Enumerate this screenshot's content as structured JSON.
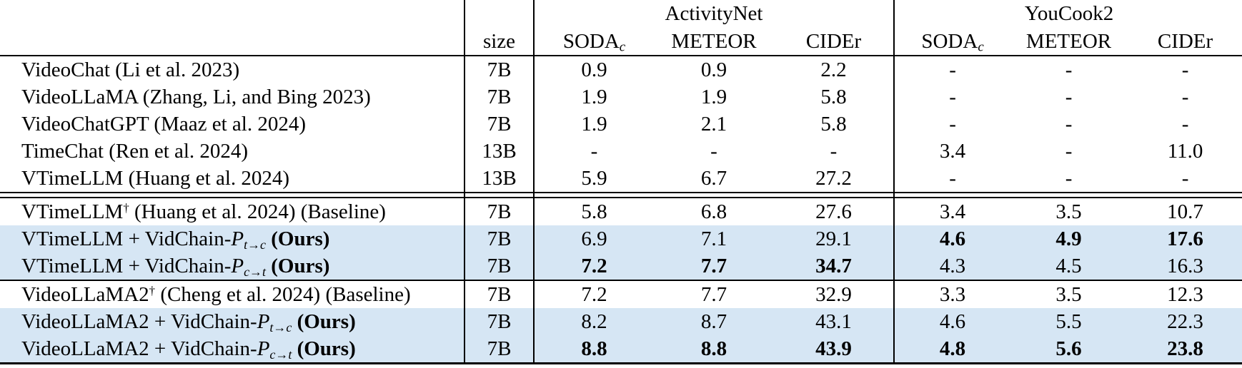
{
  "table": {
    "header": {
      "size_label": "size",
      "groups": [
        {
          "label": "ActivityNet"
        },
        {
          "label": "YouCook2"
        }
      ],
      "metrics": {
        "soda_base": "SODA",
        "soda_sub": "c",
        "meteor": "METEOR",
        "cider": "CIDEr"
      }
    },
    "highlight_color": "#d6e6f4",
    "rows": [
      {
        "label": [
          {
            "type": "text",
            "text": "VideoChat  (Li et al. 2023)"
          }
        ],
        "size": "7B",
        "values": [
          "0.9",
          "0.9",
          "2.2",
          "-",
          "-",
          "-"
        ],
        "bold": [
          false,
          false,
          false,
          false,
          false,
          false
        ],
        "highlight": false,
        "rule_after": null
      },
      {
        "label": [
          {
            "type": "text",
            "text": "VideoLLaMA (Zhang, Li, and Bing 2023)"
          }
        ],
        "size": "7B",
        "values": [
          "1.9",
          "1.9",
          "5.8",
          "-",
          "-",
          "-"
        ],
        "bold": [
          false,
          false,
          false,
          false,
          false,
          false
        ],
        "highlight": false,
        "rule_after": null
      },
      {
        "label": [
          {
            "type": "text",
            "text": "VideoChatGPT (Maaz et al. 2024)"
          }
        ],
        "size": "7B",
        "values": [
          "1.9",
          "2.1",
          "5.8",
          "-",
          "-",
          "-"
        ],
        "bold": [
          false,
          false,
          false,
          false,
          false,
          false
        ],
        "highlight": false,
        "rule_after": null
      },
      {
        "label": [
          {
            "type": "text",
            "text": "TimeChat (Ren et al. 2024)"
          }
        ],
        "size": "13B",
        "values": [
          "-",
          "-",
          "-",
          "3.4",
          "-",
          "11.0"
        ],
        "bold": [
          false,
          false,
          false,
          false,
          false,
          false
        ],
        "highlight": false,
        "rule_after": null
      },
      {
        "label": [
          {
            "type": "text",
            "text": "VTimeLLM (Huang et al. 2024)"
          }
        ],
        "size": "13B",
        "values": [
          "5.9",
          "6.7",
          "27.2",
          "-",
          "-",
          "-"
        ],
        "bold": [
          false,
          false,
          false,
          false,
          false,
          false
        ],
        "highlight": false,
        "rule_after": "double"
      },
      {
        "label": [
          {
            "type": "text",
            "text": "VTimeLLM"
          },
          {
            "type": "sup",
            "text": "†"
          },
          {
            "type": "text",
            "text": " (Huang et al. 2024) (Baseline)"
          }
        ],
        "size": "7B",
        "values": [
          "5.8",
          "6.8",
          "27.6",
          "3.4",
          "3.5",
          "10.7"
        ],
        "bold": [
          false,
          false,
          false,
          false,
          false,
          false
        ],
        "highlight": false,
        "rule_after": null
      },
      {
        "label": [
          {
            "type": "text",
            "text": "VTimeLLM + VidChain-"
          },
          {
            "type": "mathcal",
            "text": "P"
          },
          {
            "type": "sub",
            "text": "t→c"
          },
          {
            "type": "bold",
            "text": " (Ours)"
          }
        ],
        "size": "7B",
        "values": [
          "6.9",
          "7.1",
          "29.1",
          "4.6",
          "4.9",
          "17.6"
        ],
        "bold": [
          false,
          false,
          false,
          true,
          true,
          true
        ],
        "highlight": true,
        "rule_after": null
      },
      {
        "label": [
          {
            "type": "text",
            "text": "VTimeLLM + VidChain-"
          },
          {
            "type": "mathcal",
            "text": "P"
          },
          {
            "type": "sub",
            "text": "c→t"
          },
          {
            "type": "bold",
            "text": " (Ours)"
          }
        ],
        "size": "7B",
        "values": [
          "7.2",
          "7.7",
          "34.7",
          "4.3",
          "4.5",
          "16.3"
        ],
        "bold": [
          true,
          true,
          true,
          false,
          false,
          false
        ],
        "highlight": true,
        "rule_after": "single"
      },
      {
        "label": [
          {
            "type": "text",
            "text": "VideoLLaMA2"
          },
          {
            "type": "sup",
            "text": "†"
          },
          {
            "type": "text",
            "text": " (Cheng et al. 2024) (Baseline)"
          }
        ],
        "size": "7B",
        "values": [
          "7.2",
          "7.7",
          "32.9",
          "3.3",
          "3.5",
          "12.3"
        ],
        "bold": [
          false,
          false,
          false,
          false,
          false,
          false
        ],
        "highlight": false,
        "rule_after": null
      },
      {
        "label": [
          {
            "type": "text",
            "text": "VideoLLaMA2 + VidChain-"
          },
          {
            "type": "mathcal",
            "text": "P"
          },
          {
            "type": "sub",
            "text": "t→c"
          },
          {
            "type": "bold",
            "text": " (Ours)"
          }
        ],
        "size": "7B",
        "values": [
          "8.2",
          "8.7",
          "43.1",
          "4.6",
          "5.5",
          "22.3"
        ],
        "bold": [
          false,
          false,
          false,
          false,
          false,
          false
        ],
        "highlight": true,
        "rule_after": null
      },
      {
        "label": [
          {
            "type": "text",
            "text": "VideoLLaMA2 + VidChain-"
          },
          {
            "type": "mathcal",
            "text": "P"
          },
          {
            "type": "sub",
            "text": "c→t"
          },
          {
            "type": "bold",
            "text": " (Ours)"
          }
        ],
        "size": "7B",
        "values": [
          "8.8",
          "8.8",
          "43.9",
          "4.8",
          "5.6",
          "23.8"
        ],
        "bold": [
          true,
          true,
          true,
          true,
          true,
          true
        ],
        "highlight": true,
        "rule_after": null
      }
    ]
  }
}
